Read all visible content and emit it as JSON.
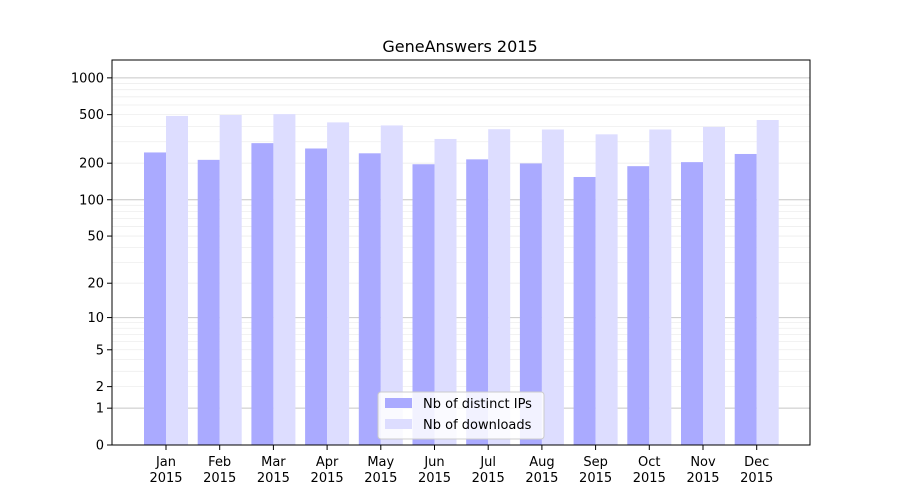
{
  "chart_data": {
    "type": "bar",
    "title": "GeneAnswers 2015",
    "xlabel": "",
    "ylabel": "",
    "yscale": "log (1 + y)",
    "ylim": [
      0,
      1400
    ],
    "yticks": [
      0,
      1,
      2,
      5,
      10,
      20,
      50,
      100,
      200,
      500,
      1000
    ],
    "grid": true,
    "legend_position": "bottom-center",
    "categories": [
      [
        "Jan",
        "2015"
      ],
      [
        "Feb",
        "2015"
      ],
      [
        "Mar",
        "2015"
      ],
      [
        "Apr",
        "2015"
      ],
      [
        "May",
        "2015"
      ],
      [
        "Jun",
        "2015"
      ],
      [
        "Jul",
        "2015"
      ],
      [
        "Aug",
        "2015"
      ],
      [
        "Sep",
        "2015"
      ],
      [
        "Oct",
        "2015"
      ],
      [
        "Nov",
        "2015"
      ],
      [
        "Dec",
        "2015"
      ]
    ],
    "series": [
      {
        "name": "Nb of distinct IPs",
        "color": "#aaaaff",
        "values": [
          245,
          213,
          292,
          264,
          241,
          196,
          215,
          199,
          154,
          189,
          204,
          238
        ]
      },
      {
        "name": "Nb of downloads",
        "color": "#ddddff",
        "values": [
          488,
          497,
          505,
          432,
          408,
          316,
          380,
          378,
          345,
          378,
          397,
          452
        ]
      }
    ]
  }
}
